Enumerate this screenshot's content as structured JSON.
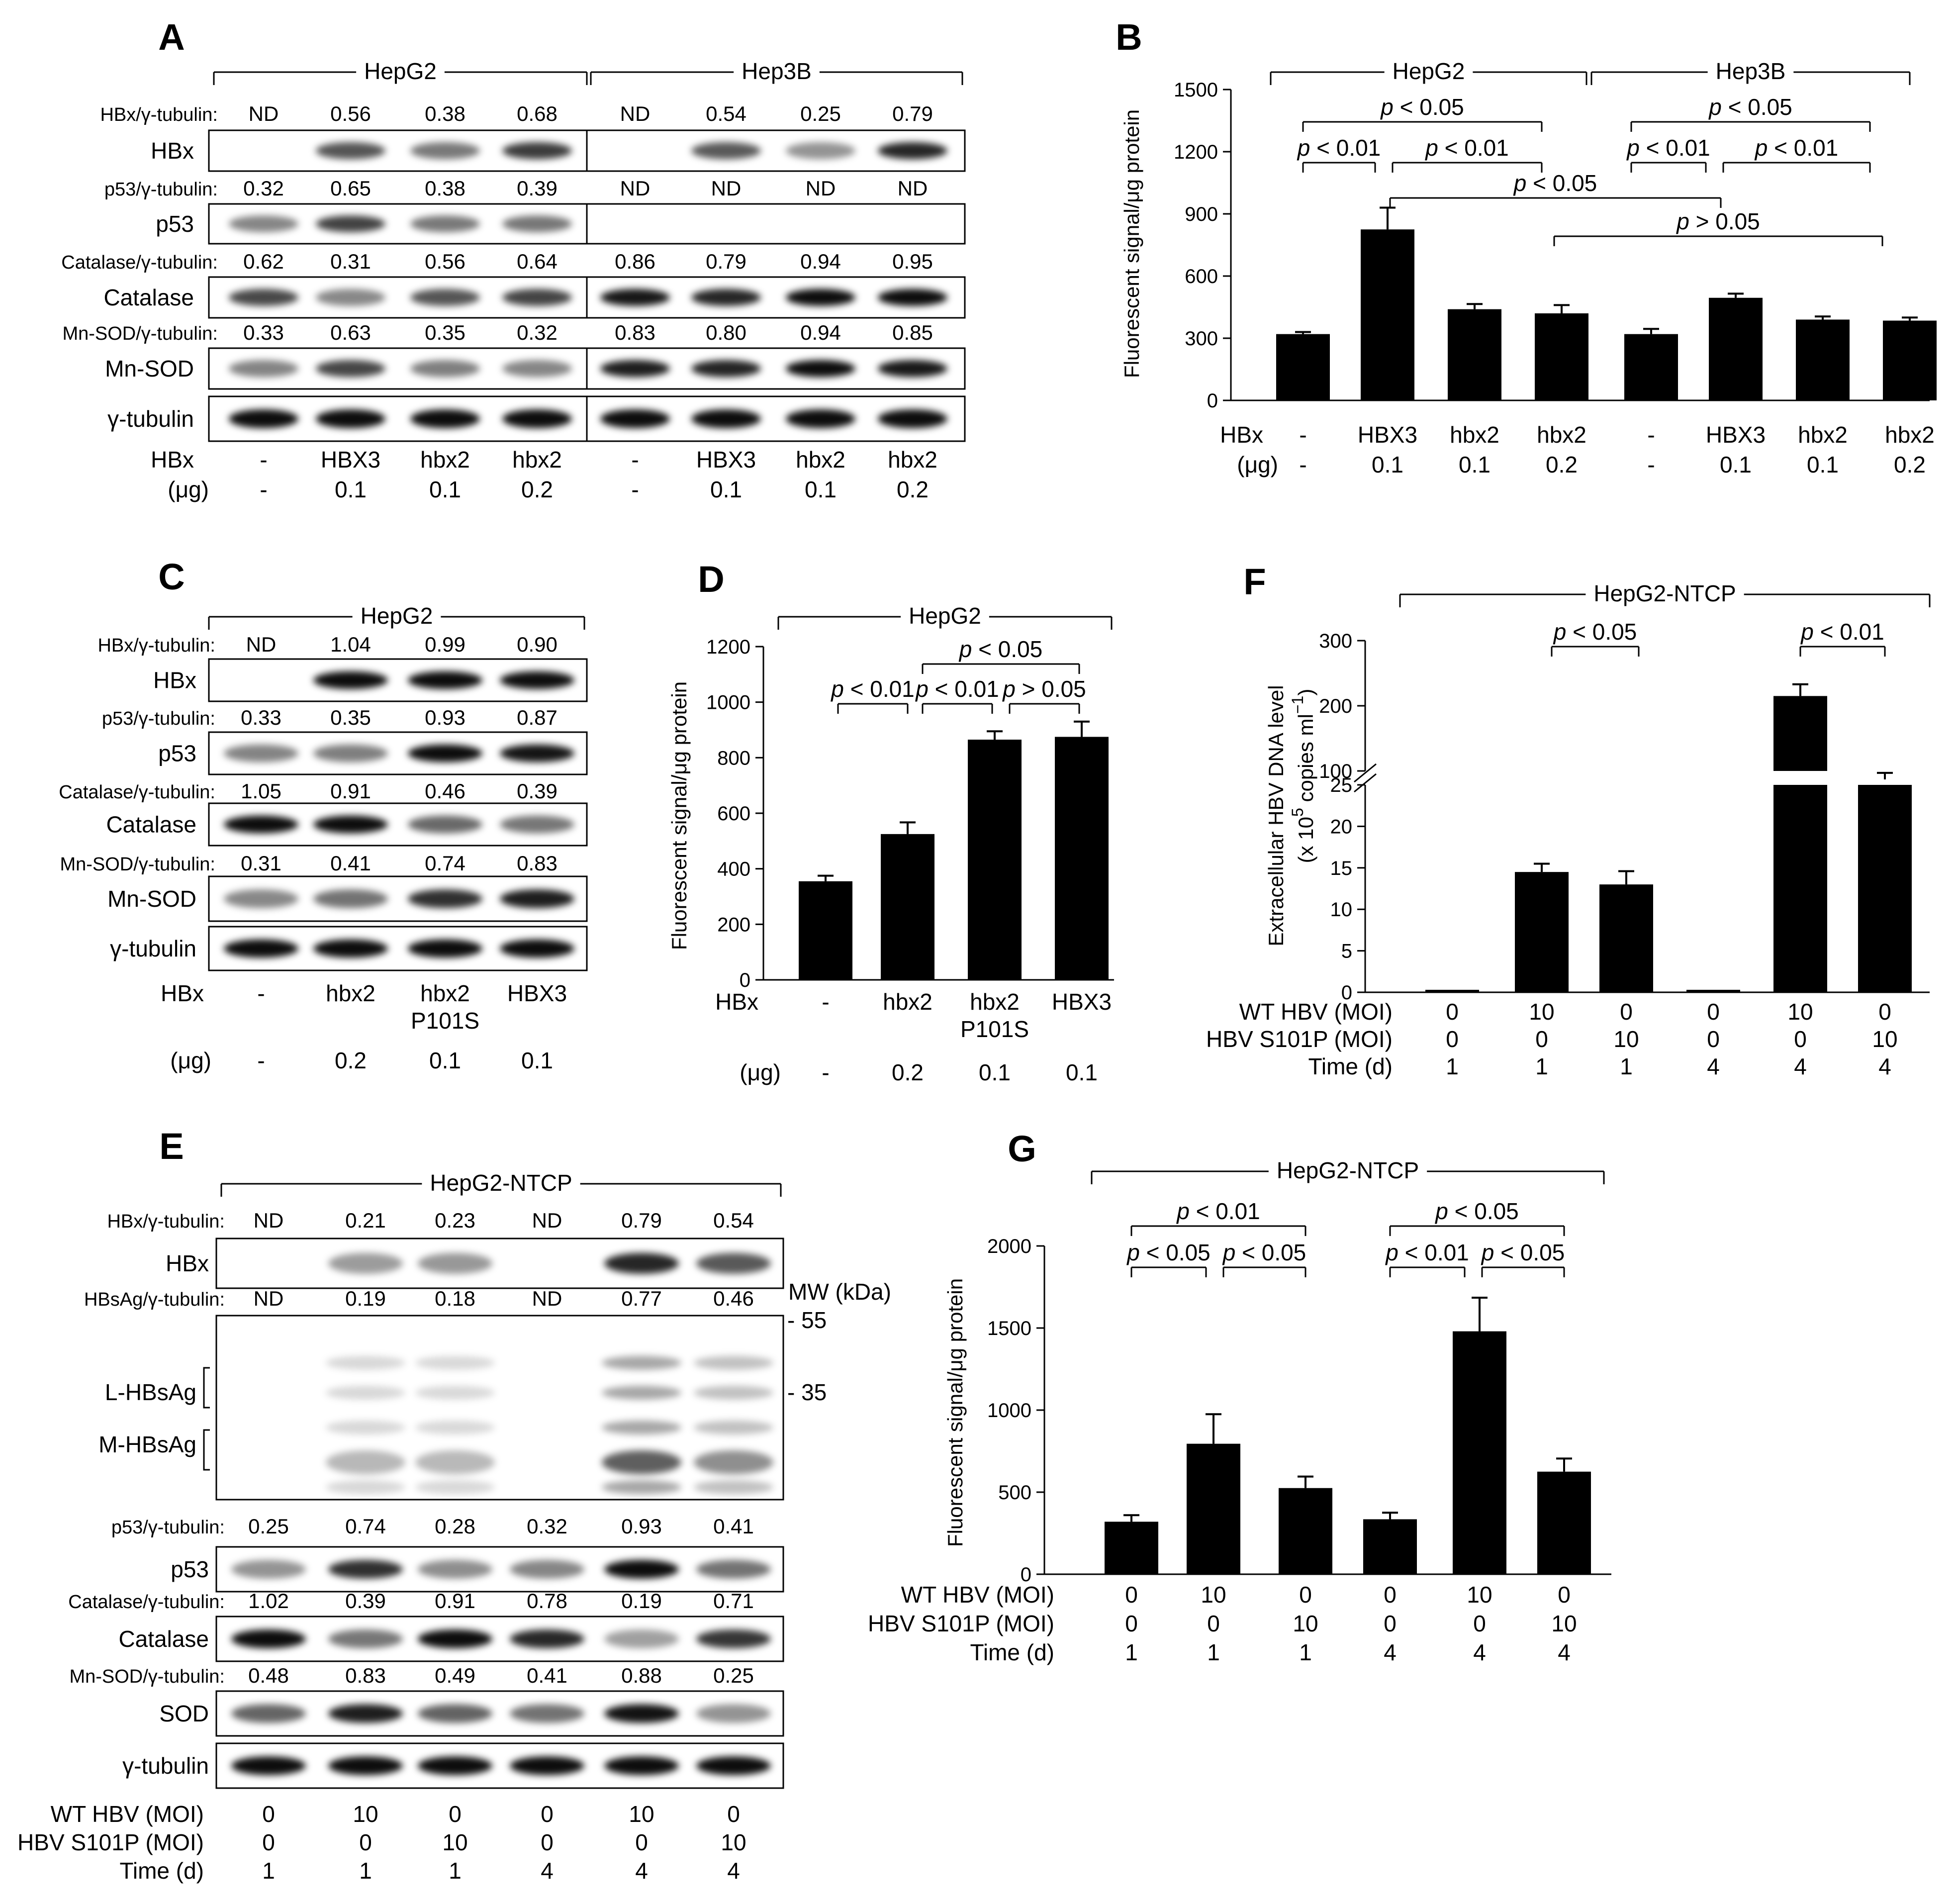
{
  "panels": {
    "A": {
      "letter": "A",
      "groups": [
        "HepG2",
        "Hep3B"
      ],
      "lanes": [
        {
          "hbx": "-",
          "ug": "-"
        },
        {
          "hbx": "HBX3",
          "ug": "0.1"
        },
        {
          "hbx": "hbx2",
          "ug": "0.1"
        },
        {
          "hbx": "hbx2",
          "ug": "0.2"
        },
        {
          "hbx": "-",
          "ug": "-"
        },
        {
          "hbx": "HBX3",
          "ug": "0.1"
        },
        {
          "hbx": "hbx2",
          "ug": "0.1"
        },
        {
          "hbx": "hbx2",
          "ug": "0.2"
        }
      ],
      "blots": [
        {
          "ratio_label": "HBx/γ-tubulin:",
          "ratios": [
            "ND",
            "0.56",
            "0.38",
            "0.68",
            "ND",
            "0.54",
            "0.25",
            "0.79"
          ],
          "name": "HBx"
        },
        {
          "ratio_label": "p53/γ-tubulin:",
          "ratios": [
            "0.32",
            "0.65",
            "0.38",
            "0.39",
            "ND",
            "ND",
            "ND",
            "ND"
          ],
          "name": "p53"
        },
        {
          "ratio_label": "Catalase/γ-tubulin:",
          "ratios": [
            "0.62",
            "0.31",
            "0.56",
            "0.64",
            "0.86",
            "0.79",
            "0.94",
            "0.95"
          ],
          "name": "Catalase"
        },
        {
          "ratio_label": "Mn-SOD/γ-tubulin:",
          "ratios": [
            "0.33",
            "0.63",
            "0.35",
            "0.32",
            "0.83",
            "0.80",
            "0.94",
            "0.85"
          ],
          "name": "Mn-SOD"
        },
        {
          "ratio_label": "",
          "ratios": [],
          "name": "γ-tubulin"
        }
      ],
      "row_labels": [
        "HBx",
        "(μg)"
      ]
    },
    "B": {
      "letter": "B",
      "groups": [
        "HepG2",
        "Hep3B"
      ],
      "ylabel": "Fluorescent signal/μg protein",
      "row_labels": [
        "HBx",
        "(μg)"
      ],
      "p_values": [
        "p < 0.05",
        "p < 0.01",
        "p < 0.01",
        "p < 0.05",
        "p < 0.01",
        "p < 0.01",
        "p < 0.05",
        "p > 0.05"
      ]
    },
    "C": {
      "letter": "C",
      "group": "HepG2",
      "lanes": [
        {
          "hbx": "-",
          "hbx2": "",
          "ug": "-"
        },
        {
          "hbx": "hbx2",
          "hbx2": "",
          "ug": "0.2"
        },
        {
          "hbx": "hbx2",
          "hbx2": "P101S",
          "ug": "0.1"
        },
        {
          "hbx": "HBX3",
          "hbx2": "",
          "ug": "0.1"
        }
      ],
      "blots": [
        {
          "ratio_label": "HBx/γ-tubulin:",
          "ratios": [
            "ND",
            "1.04",
            "0.99",
            "0.90"
          ],
          "name": "HBx"
        },
        {
          "ratio_label": "p53/γ-tubulin:",
          "ratios": [
            "0.33",
            "0.35",
            "0.93",
            "0.87"
          ],
          "name": "p53"
        },
        {
          "ratio_label": "Catalase/γ-tubulin:",
          "ratios": [
            "1.05",
            "0.91",
            "0.46",
            "0.39"
          ],
          "name": "Catalase"
        },
        {
          "ratio_label": "Mn-SOD/γ-tubulin:",
          "ratios": [
            "0.31",
            "0.41",
            "0.74",
            "0.83"
          ],
          "name": "Mn-SOD"
        },
        {
          "ratio_label": "",
          "ratios": [],
          "name": "γ-tubulin"
        }
      ],
      "row_labels": [
        "HBx",
        "(μg)"
      ]
    },
    "D": {
      "letter": "D",
      "group": "HepG2",
      "ylabel": "Fluorescent signal/μg protein",
      "row_labels": [
        "HBx",
        "(μg)"
      ],
      "p_values": [
        "p < 0.05",
        "p < 0.01",
        "p < 0.01",
        "p > 0.05"
      ]
    },
    "E": {
      "letter": "E",
      "group": "HepG2-NTCP",
      "mw_label": "MW (kDa)",
      "mw_marks": [
        "- 55",
        "- 35"
      ],
      "hbsag_labels": [
        "L-HBsAg",
        "M-HBsAg"
      ],
      "blots": [
        {
          "ratio_label": "HBx/γ-tubulin:",
          "ratios": [
            "ND",
            "0.21",
            "0.23",
            "ND",
            "0.79",
            "0.54"
          ],
          "name": "HBx"
        },
        {
          "ratio_label": "HBsAg/γ-tubulin:",
          "ratios": [
            "ND",
            "0.19",
            "0.18",
            "ND",
            "0.77",
            "0.46"
          ],
          "name": ""
        },
        {
          "ratio_label": "p53/γ-tubulin:",
          "ratios": [
            "0.25",
            "0.74",
            "0.28",
            "0.32",
            "0.93",
            "0.41"
          ],
          "name": "p53"
        },
        {
          "ratio_label": "Catalase/γ-tubulin:",
          "ratios": [
            "1.02",
            "0.39",
            "0.91",
            "0.78",
            "0.19",
            "0.71"
          ],
          "name": "Catalase"
        },
        {
          "ratio_label": "Mn-SOD/γ-tubulin:",
          "ratios": [
            "0.48",
            "0.83",
            "0.49",
            "0.41",
            "0.88",
            "0.25"
          ],
          "name": "SOD"
        },
        {
          "ratio_label": "",
          "ratios": [],
          "name": "γ-tubulin"
        }
      ],
      "conditions": {
        "labels": [
          "WT HBV (MOI)",
          "HBV S101P (MOI)",
          "Time (d)"
        ],
        "wt": [
          "0",
          "10",
          "0",
          "0",
          "10",
          "0"
        ],
        "s101p": [
          "0",
          "0",
          "10",
          "0",
          "0",
          "10"
        ],
        "time": [
          "1",
          "1",
          "1",
          "4",
          "4",
          "4"
        ]
      }
    },
    "F": {
      "letter": "F",
      "group": "HepG2-NTCP",
      "ylabel_line1": "Extracellular HBV DNA level",
      "ylabel_line2a": "(x 10",
      "ylabel_exp": "5",
      "ylabel_line2b": " copies ml",
      "ylabel_exp2": "−1",
      "ylabel_close": ")",
      "p_values": [
        "p < 0.05",
        "p < 0.01"
      ],
      "conditions": {
        "labels": [
          "WT HBV (MOI)",
          "HBV S101P (MOI)",
          "Time (d)"
        ],
        "wt": [
          "0",
          "10",
          "0",
          "0",
          "10",
          "0"
        ],
        "s101p": [
          "0",
          "0",
          "10",
          "0",
          "0",
          "10"
        ],
        "time": [
          "1",
          "1",
          "1",
          "4",
          "4",
          "4"
        ]
      }
    },
    "G": {
      "letter": "G",
      "group": "HepG2-NTCP",
      "ylabel": "Fluorescent signal/μg protein",
      "p_values": [
        "p < 0.01",
        "p < 0.05",
        "p < 0.05",
        "p < 0.05",
        "p < 0.01",
        "p < 0.05"
      ],
      "conditions": {
        "labels": [
          "WT HBV (MOI)",
          "HBV S101P (MOI)",
          "Time (d)"
        ],
        "wt": [
          "0",
          "10",
          "0",
          "0",
          "10",
          "0"
        ],
        "s101p": [
          "0",
          "0",
          "10",
          "0",
          "0",
          "10"
        ],
        "time": [
          "1",
          "1",
          "1",
          "4",
          "4",
          "4"
        ]
      }
    }
  },
  "chart_data": [
    {
      "panel": "B",
      "type": "bar",
      "categories": [
        "-",
        "HBX3",
        "hbx2",
        "hbx2",
        "-",
        "HBX3",
        "hbx2",
        "hbx2"
      ],
      "sub_categories": [
        "-",
        "0.1",
        "0.1",
        "0.2",
        "-",
        "0.1",
        "0.1",
        "0.2"
      ],
      "values": [
        320,
        825,
        440,
        420,
        320,
        495,
        390,
        385
      ],
      "errors": [
        10,
        105,
        25,
        40,
        25,
        20,
        15,
        15
      ],
      "ylim": [
        0,
        1500
      ],
      "yticks": [
        0,
        300,
        600,
        900,
        1200,
        1500
      ],
      "ylabel": "Fluorescent signal/μg protein",
      "color": "#000000"
    },
    {
      "panel": "D",
      "type": "bar",
      "categories": [
        "-",
        "hbx2",
        "hbx2 P101S",
        "HBX3"
      ],
      "sub_categories": [
        "-",
        "0.2",
        "0.1",
        "0.1"
      ],
      "values": [
        355,
        525,
        865,
        875
      ],
      "errors": [
        20,
        42,
        30,
        55
      ],
      "ylim": [
        0,
        1200
      ],
      "yticks": [
        0,
        200,
        400,
        600,
        800,
        1000,
        1200
      ],
      "ylabel": "Fluorescent signal/μg protein",
      "color": "#000000"
    },
    {
      "panel": "F",
      "type": "bar",
      "values": [
        0.3,
        14.5,
        13.0,
        0.3,
        215,
        87
      ],
      "errors": [
        0.1,
        1.0,
        1.6,
        0.1,
        18,
        10
      ],
      "axis_break": [
        25,
        100
      ],
      "yticks_low": [
        0,
        5,
        10,
        15,
        20,
        25
      ],
      "yticks_high": [
        100,
        200,
        300
      ],
      "ylabel": "Extracellular HBV DNA level (x 10^5 copies ml^-1)",
      "color": "#000000"
    },
    {
      "panel": "G",
      "type": "bar",
      "values": [
        320,
        795,
        525,
        335,
        1480,
        625
      ],
      "errors": [
        40,
        180,
        70,
        40,
        205,
        80
      ],
      "ylim": [
        0,
        2000
      ],
      "yticks": [
        0,
        500,
        1000,
        1500,
        2000
      ],
      "ylabel": "Fluorescent signal/μg protein",
      "color": "#000000"
    }
  ]
}
